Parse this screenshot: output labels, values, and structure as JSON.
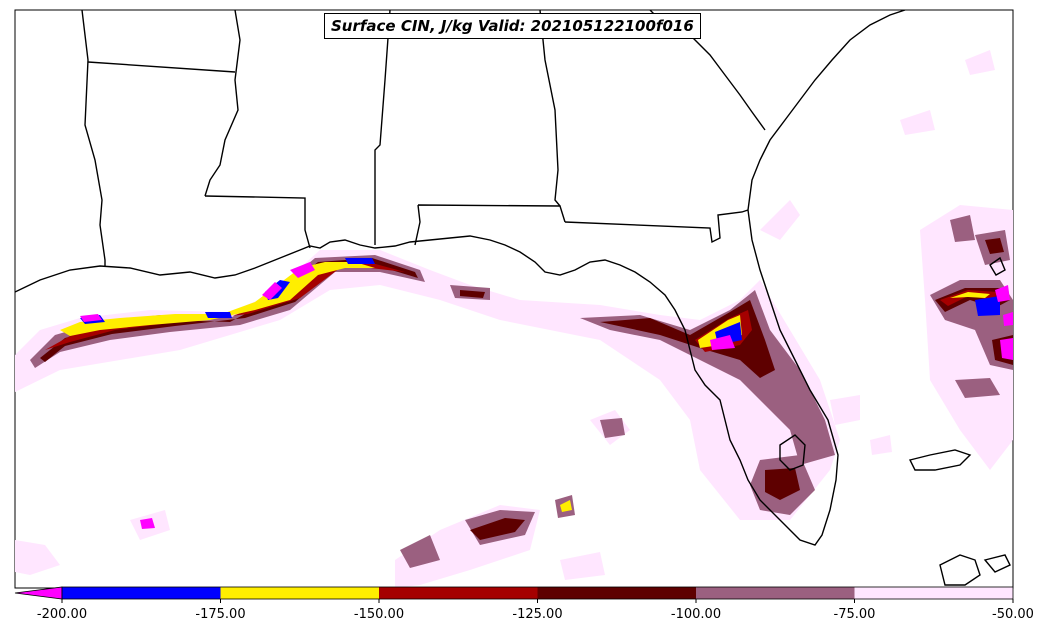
{
  "title": "Surface CIN, J/kg Valid: 202105122100f016",
  "colorbar": {
    "tick_labels": [
      "-200.00",
      "-175.00",
      "-150.00",
      "-125.00",
      "-100.00",
      "-75.00",
      "-50.00"
    ],
    "bins": [
      {
        "from": -200,
        "to": -175,
        "color": "#0000ff"
      },
      {
        "from": -175,
        "to": -150,
        "color": "#ffee00"
      },
      {
        "from": -150,
        "to": -125,
        "color": "#a50000"
      },
      {
        "from": -125,
        "to": -100,
        "color": "#5e0000"
      },
      {
        "from": -100,
        "to": -75,
        "color": "#9b6080"
      },
      {
        "from": -75,
        "to": -50,
        "color": "#ffe6ff"
      }
    ],
    "extend_min_color": "#ff00ff"
  },
  "colors": {
    "land_outline": "#000000",
    "background": "#ffffff"
  }
}
